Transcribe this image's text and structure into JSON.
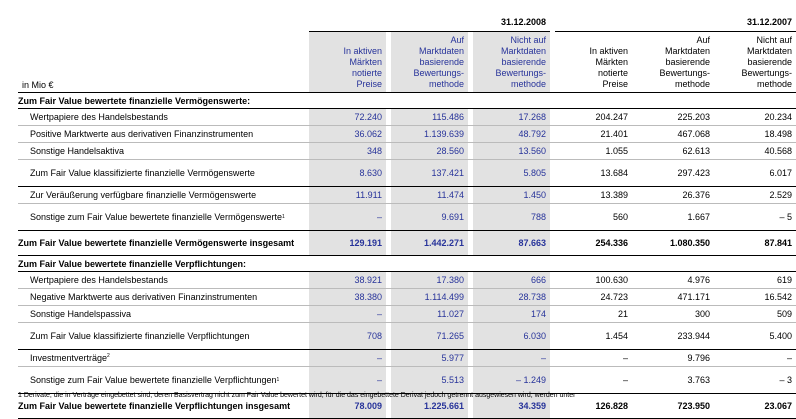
{
  "dates": {
    "y2008": "31.12.2008",
    "y2007": "31.12.2007"
  },
  "unit_label": "in Mio €",
  "col_headers": [
    [
      "In aktiven",
      "Märkten",
      "notierte",
      "Preise"
    ],
    [
      "Auf",
      "Marktdaten",
      "basierende",
      "Bewertungs-",
      "methode"
    ],
    [
      "Nicht auf",
      "Marktdaten",
      "basierende",
      "Bewertungs-",
      "methode"
    ]
  ],
  "assets": {
    "title": "Zum Fair Value bewertete finanzielle Vermögenswerte:",
    "rows": [
      {
        "label": "Wertpapiere des Handelsbestands",
        "v2008": [
          "72.240",
          "115.486",
          "17.268"
        ],
        "v2007": [
          "204.247",
          "225.203",
          "20.234"
        ]
      },
      {
        "label": "Positive Marktwerte aus derivativen Finanzinstrumenten",
        "v2008": [
          "36.062",
          "1.139.639",
          "48.792"
        ],
        "v2007": [
          "21.401",
          "467.068",
          "18.498"
        ]
      },
      {
        "label": "Sonstige Handelsaktiva",
        "v2008": [
          "348",
          "28.560",
          "13.560"
        ],
        "v2007": [
          "1.055",
          "62.613",
          "40.568"
        ]
      },
      {
        "label": "Zum Fair Value klassifizierte finanzielle Vermögenswerte",
        "v2008": [
          "8.630",
          "137.421",
          "5.805"
        ],
        "v2007": [
          "13.684",
          "297.423",
          "6.017"
        ]
      },
      {
        "label": "Zur Veräußerung verfügbare finanzielle Vermögenswerte",
        "v2008": [
          "11.911",
          "11.474",
          "1.450"
        ],
        "v2007": [
          "13.389",
          "26.376",
          "2.529"
        ]
      },
      {
        "label": "Sonstige zum Fair Value bewertete finanzielle Vermögenswerte",
        "sup": "1",
        "v2008": [
          "–",
          "9.691",
          "788"
        ],
        "v2007": [
          "560",
          "1.667",
          "– 5"
        ]
      }
    ],
    "total_label": "Zum Fair Value bewertete finanzielle Vermögenswerte insgesamt",
    "total2008": [
      "129.191",
      "1.442.271",
      "87.663"
    ],
    "total2007": [
      "254.336",
      "1.080.350",
      "87.841"
    ]
  },
  "liabilities": {
    "title": "Zum Fair Value bewertete finanzielle Verpflichtungen:",
    "rows": [
      {
        "label": "Wertpapiere des Handelsbestands",
        "v2008": [
          "38.921",
          "17.380",
          "666"
        ],
        "v2007": [
          "100.630",
          "4.976",
          "619"
        ]
      },
      {
        "label": "Negative Marktwerte aus derivativen Finanzinstrumenten",
        "v2008": [
          "38.380",
          "1.114.499",
          "28.738"
        ],
        "v2007": [
          "24.723",
          "471.171",
          "16.542"
        ]
      },
      {
        "label": "Sonstige Handelspassiva",
        "v2008": [
          "–",
          "11.027",
          "174"
        ],
        "v2007": [
          "21",
          "300",
          "509"
        ]
      },
      {
        "label": "Zum Fair Value klassifizierte finanzielle Verpflichtungen",
        "v2008": [
          "708",
          "71.265",
          "6.030"
        ],
        "v2007": [
          "1.454",
          "233.944",
          "5.400"
        ]
      },
      {
        "label": "Investmentverträge",
        "sup": "2",
        "v2008": [
          "–",
          "5.977",
          "–"
        ],
        "v2007": [
          "–",
          "9.796",
          "–"
        ]
      },
      {
        "label": "Sonstige zum Fair Value bewertete finanzielle Verpflichtungen",
        "sup": "1",
        "v2008": [
          "–",
          "5.513",
          "– 1.249"
        ],
        "v2007": [
          "–",
          "3.763",
          "– 3"
        ]
      }
    ],
    "total_label": "Zum Fair Value bewertete finanzielle Verpflichtungen insgesamt",
    "total2008": [
      "78.009",
      "1.225.661",
      "34.359"
    ],
    "total2007": [
      "126.828",
      "723.950",
      "23.067"
    ]
  },
  "footnote": "1  Derivate, die in Verträge eingebettet sind, deren Basisvertrag nicht zum Fair Value bewertet wird, für die das eingebettete Derivat jedoch getrennt ausgewiesen wird, werden unter"
}
